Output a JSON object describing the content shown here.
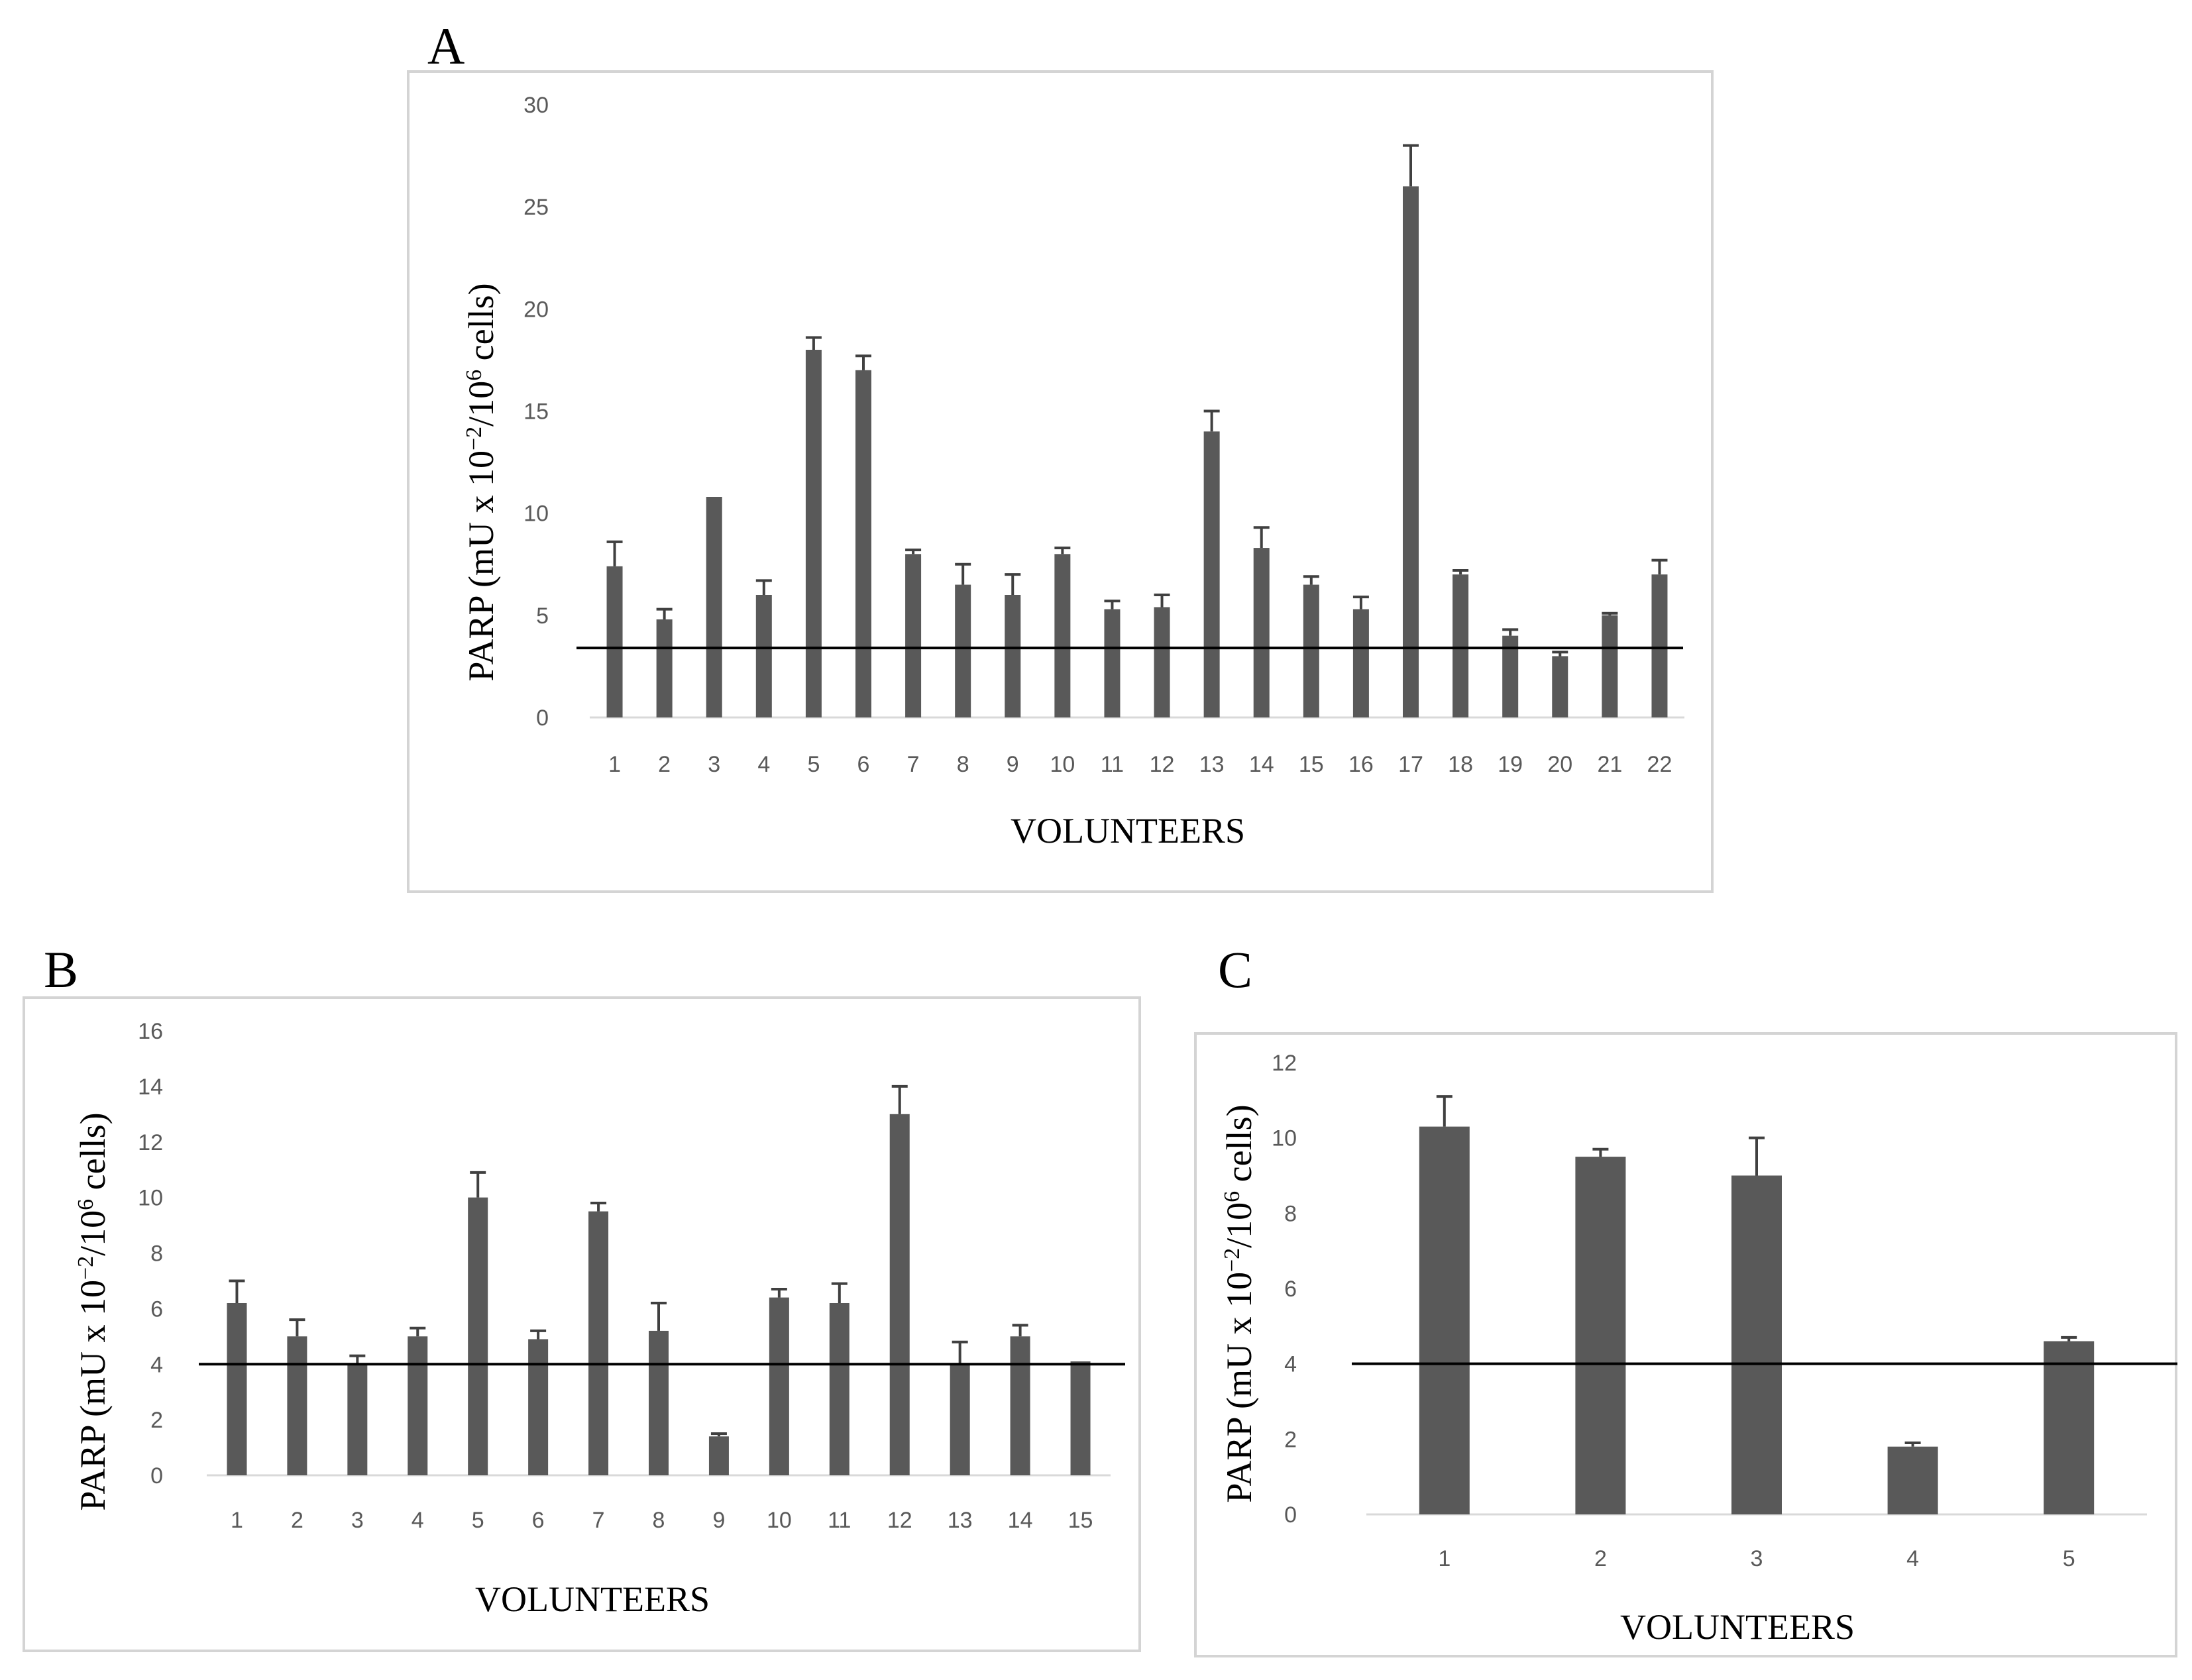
{
  "chart_data": [
    {
      "panel": "A",
      "type": "bar",
      "categories": [
        "1",
        "2",
        "3",
        "4",
        "5",
        "6",
        "7",
        "8",
        "9",
        "10",
        "11",
        "12",
        "13",
        "14",
        "15",
        "16",
        "17",
        "18",
        "19",
        "20",
        "21",
        "22"
      ],
      "values": [
        7.4,
        4.8,
        10.8,
        6.0,
        18.0,
        17.0,
        8.0,
        6.5,
        6.0,
        8.0,
        5.3,
        5.4,
        14.0,
        8.3,
        6.5,
        5.3,
        26.0,
        7.0,
        4.0,
        3.0,
        5.0,
        7.0
      ],
      "error": [
        1.2,
        0.5,
        0.0,
        0.7,
        0.6,
        0.7,
        0.2,
        1.0,
        1.0,
        0.3,
        0.4,
        0.6,
        1.0,
        1.0,
        0.4,
        0.6,
        2.0,
        0.2,
        0.3,
        0.2,
        0.1,
        0.7
      ],
      "reference_line": 3.4,
      "ylim": [
        0,
        30
      ],
      "yticks": [
        0,
        5,
        10,
        15,
        20,
        25,
        30
      ],
      "xlabel": "VOLUNTEERS",
      "ylabel_main": "PARP (mU x 10",
      "ylabel_sup1": "−2",
      "ylabel_mid": "/10",
      "ylabel_sup2": "6",
      "ylabel_end": " cells)",
      "grid": false,
      "bar_color": "#595959"
    },
    {
      "panel": "B",
      "type": "bar",
      "categories": [
        "1",
        "2",
        "3",
        "4",
        "5",
        "6",
        "7",
        "8",
        "9",
        "10",
        "11",
        "12",
        "13",
        "14",
        "15"
      ],
      "values": [
        6.2,
        5.0,
        4.0,
        5.0,
        10.0,
        4.9,
        9.5,
        5.2,
        1.4,
        6.4,
        6.2,
        13.0,
        4.0,
        5.0,
        4.1
      ],
      "error": [
        0.8,
        0.6,
        0.3,
        0.3,
        0.9,
        0.3,
        0.3,
        1.0,
        0.1,
        0.3,
        0.7,
        1.0,
        0.8,
        0.4,
        0.0
      ],
      "reference_line": 4.0,
      "ylim": [
        0,
        16
      ],
      "yticks": [
        0,
        2,
        4,
        6,
        8,
        10,
        12,
        14,
        16
      ],
      "xlabel": "VOLUNTEERS",
      "ylabel_main": "PARP (mU  x 10",
      "ylabel_sup1": "−2",
      "ylabel_mid": "/10",
      "ylabel_sup2": "6",
      "ylabel_end": " cells)",
      "grid": false,
      "bar_color": "#595959"
    },
    {
      "panel": "C",
      "type": "bar",
      "categories": [
        "1",
        "2",
        "3",
        "4",
        "5"
      ],
      "values": [
        10.3,
        9.5,
        9.0,
        1.8,
        4.6
      ],
      "error": [
        0.8,
        0.2,
        1.0,
        0.1,
        0.1
      ],
      "reference_line": 4.0,
      "ylim": [
        0,
        12
      ],
      "yticks": [
        0,
        2,
        4,
        6,
        8,
        10,
        12
      ],
      "xlabel": "VOLUNTEERS",
      "ylabel_main": "PARP (mU  x 10",
      "ylabel_sup1": "−2",
      "ylabel_mid": "/10",
      "ylabel_sup2": "6",
      "ylabel_end": " cells)",
      "grid": false,
      "bar_color": "#595959"
    }
  ]
}
